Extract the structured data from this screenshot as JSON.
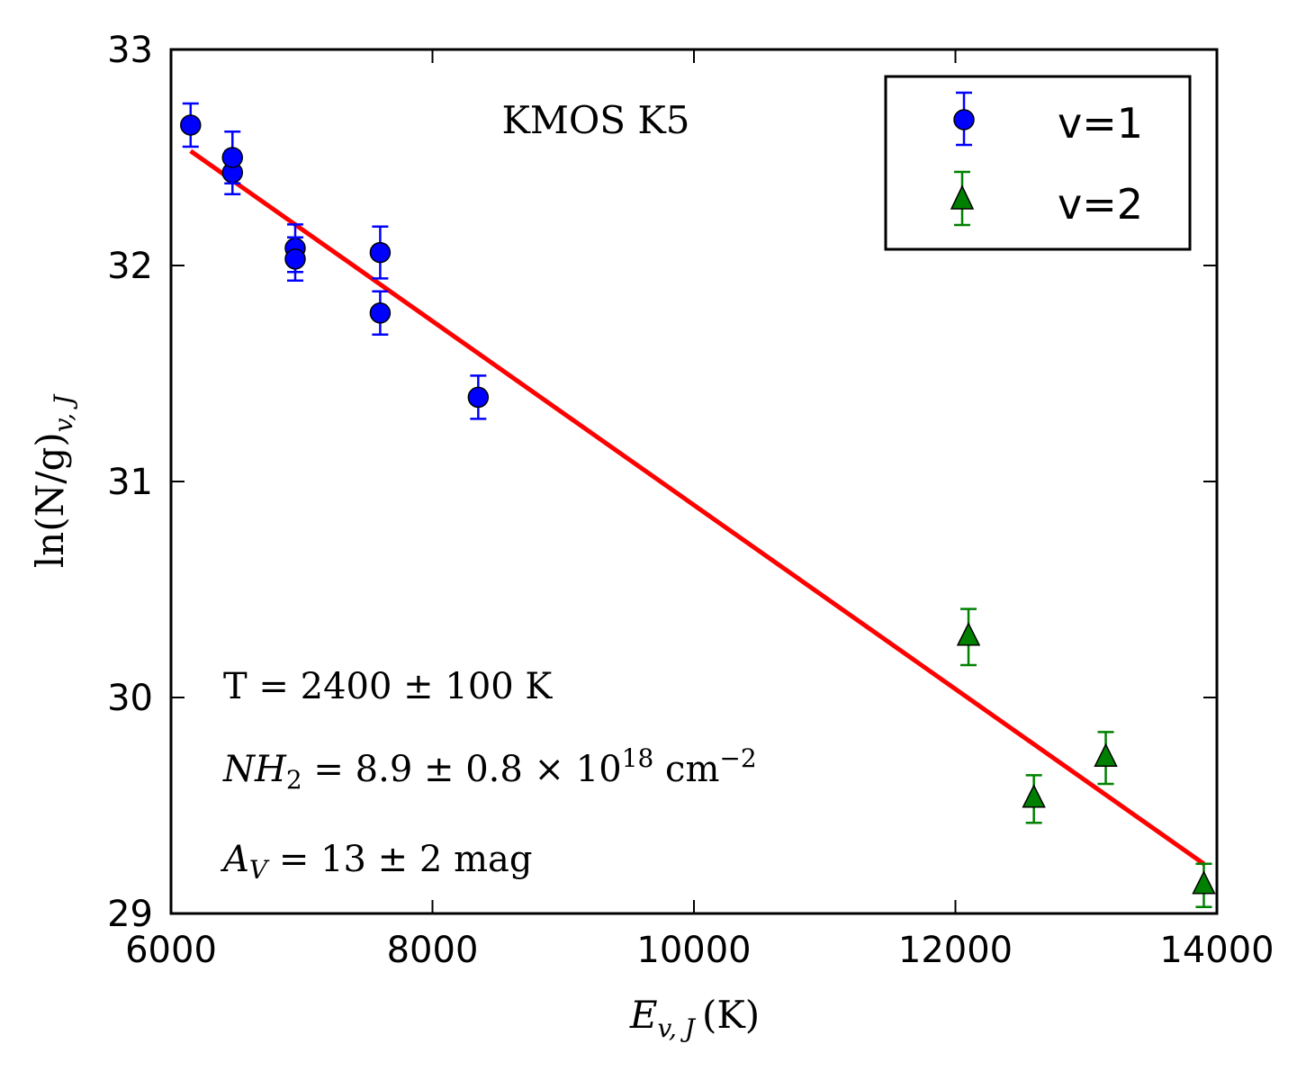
{
  "chart_data": {
    "type": "scatter",
    "title": "KMOS K5",
    "xlabel_main": "E",
    "xlabel_sub": "v, J",
    "xlabel_unit": "(K)",
    "ylabel_main": "ln(N/g)",
    "ylabel_sub": "v, J",
    "xlim": [
      6000,
      14000
    ],
    "ylim": [
      29,
      33
    ],
    "xticks": [
      6000,
      8000,
      10000,
      12000,
      14000
    ],
    "yticks": [
      29,
      30,
      31,
      32,
      33
    ],
    "grid": false,
    "legend_position": "top-right",
    "series": [
      {
        "name": "v=1",
        "marker": "circle",
        "color": "#0000ff",
        "x": [
          6150,
          6470,
          6470,
          6950,
          6950,
          7600,
          7600,
          8350
        ],
        "y": [
          32.65,
          32.43,
          32.5,
          32.08,
          32.03,
          32.06,
          31.78,
          31.39
        ],
        "yerr": [
          0.1,
          0.1,
          0.12,
          0.11,
          0.1,
          0.12,
          0.1,
          0.1
        ]
      },
      {
        "name": "v=2",
        "marker": "triangle",
        "color": "#008000",
        "x": [
          12100,
          12600,
          13150,
          13900
        ],
        "y": [
          30.28,
          29.53,
          29.72,
          29.13
        ],
        "yerr": [
          0.13,
          0.11,
          0.12,
          0.1
        ]
      }
    ],
    "fit_line": {
      "color": "#ff0000",
      "x": [
        6150,
        13900
      ],
      "y": [
        32.53,
        29.23
      ]
    },
    "annotations": {
      "temperature": "T = 2400 ± 100 K",
      "column_density_prefix": "NH",
      "column_density_sub": "2",
      "column_density_value": " = 8.9 ± 0.8 × 10",
      "column_density_exp": "18",
      "column_density_unit": " cm",
      "column_density_unit_exp": "−2",
      "extinction_prefix": "A",
      "extinction_sub": "V",
      "extinction_value": " = 13 ± 2 mag"
    }
  }
}
